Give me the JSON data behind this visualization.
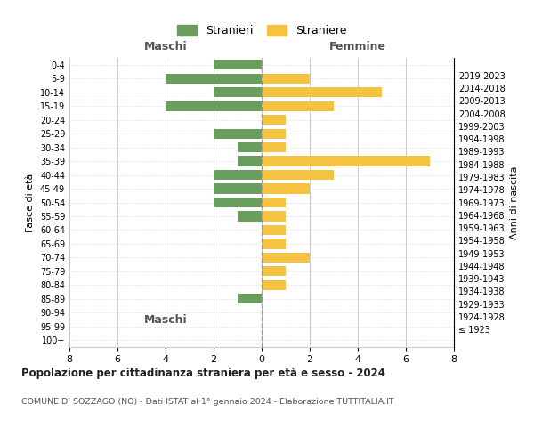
{
  "age_groups": [
    "100+",
    "95-99",
    "90-94",
    "85-89",
    "80-84",
    "75-79",
    "70-74",
    "65-69",
    "60-64",
    "55-59",
    "50-54",
    "45-49",
    "40-44",
    "35-39",
    "30-34",
    "25-29",
    "20-24",
    "15-19",
    "10-14",
    "5-9",
    "0-4"
  ],
  "birth_years": [
    "≤ 1923",
    "1924-1928",
    "1929-1933",
    "1934-1938",
    "1939-1943",
    "1944-1948",
    "1949-1953",
    "1954-1958",
    "1959-1963",
    "1964-1968",
    "1969-1973",
    "1974-1978",
    "1979-1983",
    "1984-1988",
    "1989-1993",
    "1994-1998",
    "1999-2003",
    "2004-2008",
    "2009-2013",
    "2014-2018",
    "2019-2023"
  ],
  "maschi": [
    0,
    0,
    0,
    1,
    0,
    0,
    0,
    0,
    0,
    1,
    2,
    2,
    2,
    1,
    1,
    2,
    0,
    4,
    2,
    4,
    2
  ],
  "femmine": [
    0,
    0,
    0,
    0,
    1,
    1,
    2,
    1,
    1,
    1,
    1,
    2,
    3,
    7,
    1,
    1,
    1,
    3,
    5,
    2,
    0
  ],
  "color_maschi": "#6a9e5f",
  "color_femmine": "#f5c242",
  "title": "Popolazione per cittadinanza straniera per età e sesso - 2024",
  "subtitle": "COMUNE DI SOZZAGO (NO) - Dati ISTAT al 1° gennaio 2024 - Elaborazione TUTTITALIA.IT",
  "label_maschi": "Maschi",
  "label_femmine": "Femmine",
  "ylabel_left": "Fasce di età",
  "ylabel_right": "Anni di nascita",
  "legend_stranieri": "Stranieri",
  "legend_straniere": "Straniere",
  "xlim": 8,
  "background_color": "#ffffff",
  "grid_color": "#cccccc"
}
